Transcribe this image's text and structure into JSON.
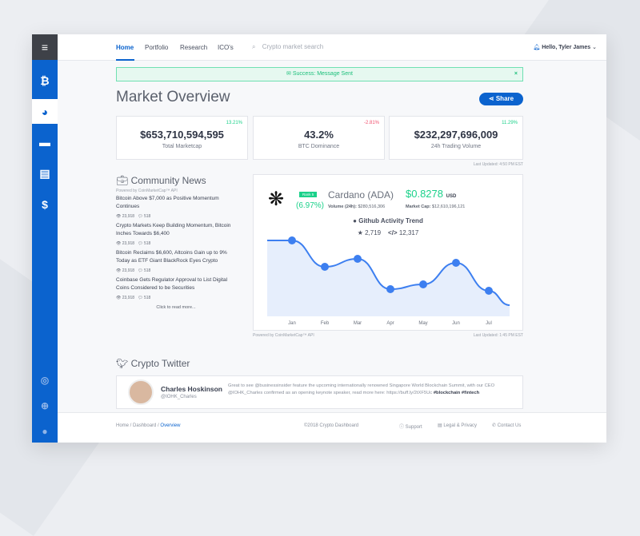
{
  "sidebar": {
    "items": [
      {
        "icon": "menu-icon",
        "glyph": "≡"
      },
      {
        "icon": "bitcoin-icon",
        "glyph": "₿"
      },
      {
        "icon": "pie-chart-icon",
        "glyph": "◕"
      },
      {
        "icon": "wallet-icon",
        "glyph": "▬"
      },
      {
        "icon": "card-icon",
        "glyph": "▤"
      },
      {
        "icon": "dollar-icon",
        "glyph": "$"
      }
    ],
    "social": [
      {
        "icon": "instagram-icon",
        "glyph": "◎"
      },
      {
        "icon": "dribbble-icon",
        "glyph": "⊕"
      },
      {
        "icon": "github-icon",
        "glyph": "●"
      }
    ]
  },
  "nav": {
    "tabs": [
      "Home",
      "Portfolio",
      "Research",
      "ICO's"
    ],
    "search_placeholder": "Crypto market search",
    "user": "Hello, Tyler James"
  },
  "alert": {
    "text": "Success: Message Sent",
    "close": "×"
  },
  "page": {
    "title": "Market Overview",
    "share": "Share"
  },
  "stats": [
    {
      "value": "$653,710,594,595",
      "label": "Total Marketcap",
      "change": "13.21%",
      "up": true
    },
    {
      "value": "43.2%",
      "label": "BTC Dominance",
      "change": "-2.81%",
      "up": false
    },
    {
      "value": "$232,297,696,009",
      "label": "24h Trading Volume",
      "change": "11.29%",
      "up": true
    }
  ],
  "stats_updated": "Last Updated: 4:50 PM EST",
  "news": {
    "title": "Community News",
    "powered": "Powered by CoinMarketCap™ API",
    "items": [
      {
        "title": "Bitcoin Above $7,000 as Positive Momentum Continues",
        "views": "23,918",
        "comments": "518"
      },
      {
        "title": "Crypto Markets Keep Building Momentum, Bitcoin Inches Towards $6,400",
        "views": "23,918",
        "comments": "518"
      },
      {
        "title": "Bitcoin Reclaims $6,600, Altcoins Gain up to 9% Today as ETF Giant BlackRock Eyes Crypto",
        "views": "23,918",
        "comments": "518"
      },
      {
        "title": "Coinbase Gets Regulator Approval to List Digital Coins Considered to be Securities",
        "views": "23,918",
        "comments": "518"
      }
    ],
    "more": "Click to read more..."
  },
  "coin": {
    "rank": "Rank 5",
    "change": "(6.97%)",
    "name": "Cardano (ADA)",
    "price": "$0.8278",
    "currency": "USD",
    "volume_label": "Volume (24h):",
    "volume": "$280,516,306",
    "mcap_label": "Market Cap:",
    "mcap": "$12,610,196,121",
    "trend_title": "Github Activity Trend",
    "stars": "2,719",
    "commits": "12,317",
    "powered": "Powered by CoinMarketCap™ API",
    "updated": "Last Updated: 1:45 PM EST"
  },
  "chart_data": {
    "type": "area",
    "categories": [
      "Jan",
      "Feb",
      "Mar",
      "Apr",
      "May",
      "Jun",
      "Jul"
    ],
    "values": [
      95,
      62,
      72,
      34,
      40,
      67,
      32
    ],
    "lead_in": 95,
    "tail": 14,
    "ylim": [
      0,
      105
    ],
    "grid": false,
    "color": "#3d7ff0",
    "fill": "#e6eefc"
  },
  "twitter": {
    "title": "Crypto Twitter",
    "name": "Charles Hoskinson",
    "handle": "@IOHK_Charles",
    "text": "Great to see @businessinsider feature the upcoming internationally renowned Singapore World Blockchain Summit, with our CEO @IOHK_Charles confirmed as an opening keynote speaker, read more here: https://buff.ly/2tXF5Uc",
    "tags": "#blockchain #fintech"
  },
  "footer": {
    "crumbs": [
      "Home",
      "Dashboard"
    ],
    "current": "Overview",
    "copyright": "©2018 Crypto Dashboard",
    "links": [
      "Support",
      "Legal & Privacy",
      "Contact Us"
    ]
  },
  "colors": {
    "brand": "#0b63ce",
    "green": "#1bd18a",
    "red": "#f0506e"
  }
}
